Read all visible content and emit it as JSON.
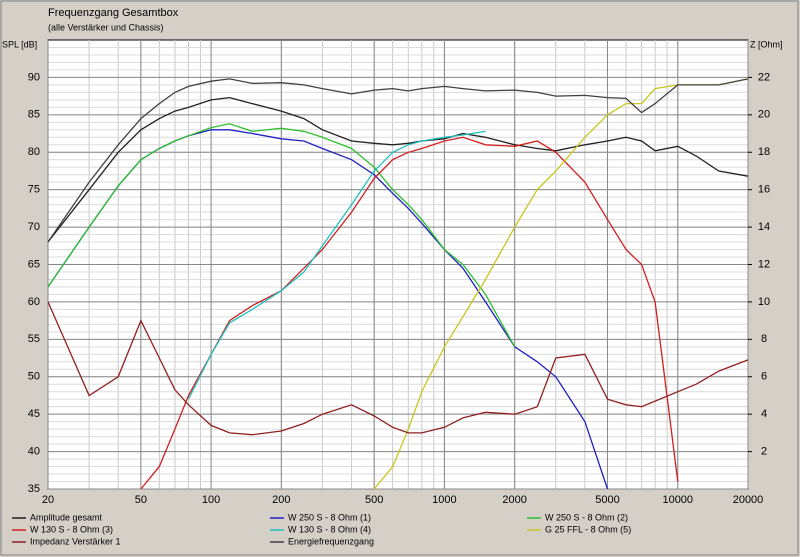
{
  "chart_data": {
    "type": "line",
    "title": "Frequenzgang Gesamtbox",
    "subtitle": "(alle Verstärker und Chassis)",
    "ylabel": "SPL [dB]",
    "y2label": "Z [Ohm]",
    "xscale": "log",
    "grid": true,
    "xlim": [
      20,
      20000
    ],
    "xticks": [
      20,
      50,
      100,
      200,
      500,
      1000,
      2000,
      5000,
      10000,
      20000
    ],
    "ylim": [
      35,
      95
    ],
    "yticks": [
      35,
      40,
      45,
      50,
      55,
      60,
      65,
      70,
      75,
      80,
      85,
      90
    ],
    "y2lim": [
      0,
      24
    ],
    "y2ticks": [
      2,
      4,
      6,
      8,
      10,
      12,
      14,
      16,
      18,
      20,
      22
    ],
    "x": [
      20,
      30,
      40,
      50,
      60,
      70,
      80,
      100,
      120,
      150,
      200,
      250,
      300,
      400,
      500,
      600,
      700,
      800,
      1000,
      1200,
      1500,
      2000,
      2500,
      3000,
      4000,
      5000,
      6000,
      7000,
      8000,
      10000,
      12000,
      15000,
      20000
    ],
    "series": [
      {
        "name": "Amplitude gesamt",
        "color": "#202020",
        "values": [
          68,
          75,
          80,
          83,
          84.5,
          85.5,
          86,
          87,
          87.3,
          86.5,
          85.5,
          84.5,
          83,
          81.5,
          81.2,
          81,
          81.2,
          81.5,
          81.8,
          82.5,
          82,
          81,
          80.5,
          80.2,
          81,
          81.5,
          82,
          81.5,
          80.2,
          80.8,
          79.5,
          77.5,
          76.8
        ]
      },
      {
        "name": "W 250 S - 8 Ohm  (1)",
        "color": "#2020c0",
        "values": [
          62,
          70,
          75.5,
          79,
          80.5,
          81.5,
          82.2,
          83,
          83,
          82.5,
          81.8,
          81.5,
          80.5,
          79,
          77,
          74.5,
          72.5,
          70.5,
          67,
          64.5,
          60,
          54,
          52,
          50,
          44,
          35,
          null,
          null,
          null,
          null,
          null,
          null,
          null
        ]
      },
      {
        "name": "W 250 S - 8 Ohm  (2)",
        "color": "#30c030",
        "values": [
          62,
          70,
          75.5,
          79,
          80.5,
          81.5,
          82.2,
          83.3,
          83.8,
          82.8,
          83.2,
          82.8,
          82,
          80.5,
          78,
          75,
          73,
          71,
          67,
          65,
          61,
          54,
          null,
          null,
          null,
          null,
          null,
          null,
          null,
          null,
          null,
          null,
          null
        ]
      },
      {
        "name": "W 130 S - 8 Ohm (3)",
        "color": "#d02020",
        "values": [
          null,
          null,
          null,
          35,
          38,
          43,
          47.5,
          53,
          57.5,
          59.5,
          61.5,
          64.5,
          67,
          72,
          76.5,
          79,
          80,
          80.5,
          81.5,
          82,
          81,
          80.8,
          81.5,
          80,
          76,
          71,
          67,
          65,
          60,
          36,
          null,
          null,
          null
        ]
      },
      {
        "name": "W 130 S - 8 Ohm (4)",
        "color": "#20c0c0",
        "values": [
          null,
          null,
          null,
          null,
          null,
          null,
          47,
          53,
          57.2,
          59,
          61.5,
          64,
          67.5,
          73,
          77.5,
          80,
          81,
          81.5,
          82,
          82.3,
          82.8,
          null,
          null,
          null,
          null,
          null,
          null,
          null,
          null,
          null,
          null,
          null,
          null
        ]
      },
      {
        "name": "G 25 FFL - 8 Ohm (5)",
        "color": "#c8c820",
        "values": [
          null,
          null,
          null,
          null,
          null,
          null,
          null,
          null,
          null,
          null,
          null,
          null,
          null,
          null,
          35,
          38,
          43,
          48,
          54,
          58,
          63,
          70,
          75,
          77.5,
          82,
          85,
          86.5,
          86.5,
          88.5,
          89,
          89,
          89,
          89.8
        ]
      },
      {
        "name": "Impedanz Verstärker 1",
        "color": "#902020",
        "axis": "y2",
        "values": [
          10,
          5,
          6,
          9,
          7,
          5.3,
          4.5,
          3.4,
          3,
          2.9,
          3.1,
          3.5,
          4,
          4.5,
          3.9,
          3.3,
          3,
          3,
          3.3,
          3.8,
          4.1,
          4,
          4.4,
          7,
          7.2,
          4.8,
          4.5,
          4.4,
          4.7,
          5.2,
          5.6,
          6.3,
          6.9
        ]
      },
      {
        "name": "Energiefrequenzgang",
        "color": "#404040",
        "values": [
          68,
          76,
          81,
          84.5,
          86.5,
          88,
          88.8,
          89.5,
          89.8,
          89.2,
          89.3,
          89,
          88.5,
          87.8,
          88.3,
          88.5,
          88.2,
          88.5,
          88.8,
          88.5,
          88.2,
          88.3,
          88,
          87.5,
          87.6,
          87.3,
          87.2,
          85.3,
          86.5,
          89,
          89,
          89,
          89.8
        ]
      }
    ]
  }
}
